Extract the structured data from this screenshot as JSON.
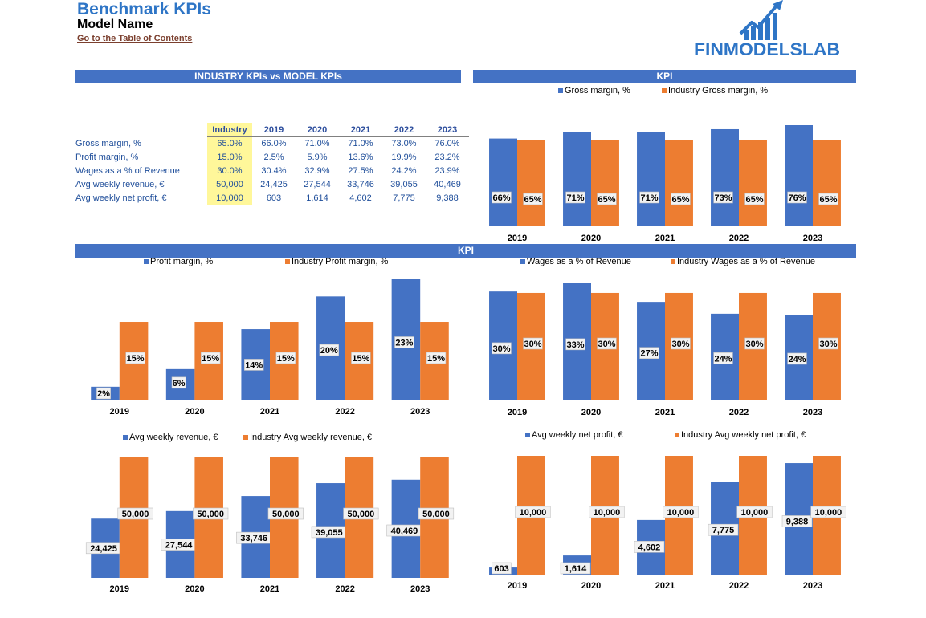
{
  "header": {
    "title": "Benchmark KPIs",
    "subtitle": "Model Name",
    "toc_link": "Go to the Table of Contents",
    "logo_text": "FINMODELSLAB"
  },
  "bands": {
    "left": "INDUSTRY KPIs vs MODEL KPIs",
    "right": "KPI",
    "middle": "KPI"
  },
  "colors": {
    "model": "#4472c4",
    "industry": "#ed7d31",
    "band": "#4472c4",
    "title": "#2e75c6",
    "industry_cell": "#fff79a"
  },
  "table": {
    "headers": [
      "Industry",
      "2019",
      "2020",
      "2021",
      "2022",
      "2023"
    ],
    "rows": [
      {
        "label": "Gross margin, %",
        "cells": [
          "65.0%",
          "66.0%",
          "71.0%",
          "71.0%",
          "73.0%",
          "76.0%"
        ]
      },
      {
        "label": "Profit margin, %",
        "cells": [
          "15.0%",
          "2.5%",
          "5.9%",
          "13.6%",
          "19.9%",
          "23.2%"
        ]
      },
      {
        "label": "Wages as a % of Revenue",
        "cells": [
          "30.0%",
          "30.4%",
          "32.9%",
          "27.5%",
          "24.2%",
          "23.9%"
        ]
      },
      {
        "label": "Avg weekly revenue, €",
        "cells": [
          "50,000",
          "24,425",
          "27,544",
          "33,746",
          "39,055",
          "40,469"
        ]
      },
      {
        "label": "Avg weekly net profit, €",
        "cells": [
          "10,000",
          "603",
          "1,614",
          "4,602",
          "7,775",
          "9,388"
        ]
      }
    ]
  },
  "chart_data": [
    {
      "type": "bar",
      "categories": [
        "2019",
        "2020",
        "2021",
        "2022",
        "2023"
      ],
      "series": [
        {
          "name": "Gross margin, %",
          "values": [
            66,
            71,
            71,
            73,
            76
          ],
          "labels": [
            "66%",
            "71%",
            "71%",
            "73%",
            "76%"
          ]
        },
        {
          "name": "Industry Gross margin, %",
          "values": [
            65,
            65,
            65,
            65,
            65
          ],
          "labels": [
            "65%",
            "65%",
            "65%",
            "65%",
            "65%"
          ]
        }
      ],
      "legend": "top",
      "grid": false
    },
    {
      "type": "bar",
      "categories": [
        "2019",
        "2020",
        "2021",
        "2022",
        "2023"
      ],
      "series": [
        {
          "name": "Profit margin, %",
          "values": [
            2.5,
            5.9,
            13.6,
            19.9,
            23.2
          ],
          "labels": [
            "2%",
            "6%",
            "14%",
            "20%",
            "23%"
          ]
        },
        {
          "name": "Industry Profit margin, %",
          "values": [
            15,
            15,
            15,
            15,
            15
          ],
          "labels": [
            "15%",
            "15%",
            "15%",
            "15%",
            "15%"
          ]
        }
      ],
      "legend": "top",
      "grid": false
    },
    {
      "type": "bar",
      "categories": [
        "2019",
        "2020",
        "2021",
        "2022",
        "2023"
      ],
      "series": [
        {
          "name": "Wages as a % of Revenue",
          "values": [
            30.4,
            32.9,
            27.5,
            24.2,
            23.9
          ],
          "labels": [
            "30%",
            "33%",
            "27%",
            "24%",
            "24%"
          ]
        },
        {
          "name": "Industry Wages as a % of Revenue",
          "values": [
            30,
            30,
            30,
            30,
            30
          ],
          "labels": [
            "30%",
            "30%",
            "30%",
            "30%",
            "30%"
          ]
        }
      ],
      "legend": "top",
      "grid": false
    },
    {
      "type": "bar",
      "categories": [
        "2019",
        "2020",
        "2021",
        "2022",
        "2023"
      ],
      "series": [
        {
          "name": "Avg weekly revenue, €",
          "values": [
            24425,
            27544,
            33746,
            39055,
            40469
          ],
          "labels": [
            "24,425",
            "27,544",
            "33,746",
            "39,055",
            "40,469"
          ]
        },
        {
          "name": "Industry Avg weekly revenue, €",
          "values": [
            50000,
            50000,
            50000,
            50000,
            50000
          ],
          "labels": [
            "50,000",
            "50,000",
            "50,000",
            "50,000",
            "50,000"
          ]
        }
      ],
      "legend": "top",
      "grid": false
    },
    {
      "type": "bar",
      "categories": [
        "2019",
        "2020",
        "2021",
        "2022",
        "2023"
      ],
      "series": [
        {
          "name": "Avg weekly net profit, €",
          "values": [
            603,
            1614,
            4602,
            7775,
            9388
          ],
          "labels": [
            "603",
            "1,614",
            "4,602",
            "7,775",
            "9,388"
          ]
        },
        {
          "name": "Industry Avg weekly net profit, €",
          "values": [
            10000,
            10000,
            10000,
            10000,
            10000
          ],
          "labels": [
            "10,000",
            "10,000",
            "10,000",
            "10,000",
            "10,000"
          ]
        }
      ],
      "legend": "top",
      "grid": false
    }
  ]
}
